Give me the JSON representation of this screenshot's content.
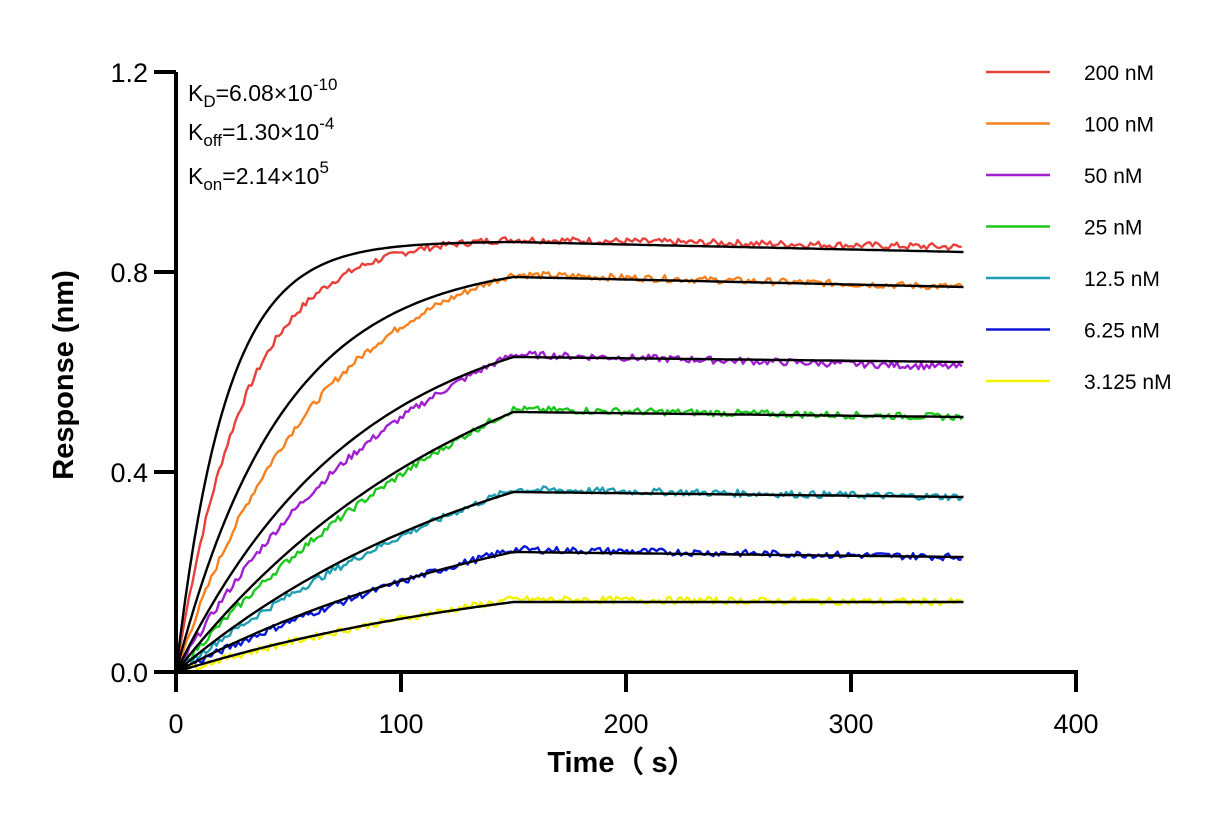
{
  "chart_data": {
    "type": "line",
    "title": "",
    "xlabel": "Time（ s）",
    "ylabel": "Response (nm)",
    "xlim": [
      0,
      400
    ],
    "ylim": [
      0,
      1.2
    ],
    "x_ticks": [
      "0",
      "100",
      "200",
      "300",
      "400"
    ],
    "y_ticks": [
      "0.0",
      "0.4",
      "0.8",
      "1.2"
    ],
    "grid": false,
    "legend_position": "top-right",
    "annotations": {
      "kd": {
        "base": "K",
        "sub": "D",
        "text": "=6.08×10",
        "sup": "-10"
      },
      "koff": {
        "base": "K",
        "sub": "off",
        "text": "=1.30×10",
        "sup": "-4"
      },
      "kon": {
        "base": "K",
        "sub": "on",
        "text": "=2.14×10",
        "sup": "5"
      }
    },
    "association_end": 150,
    "dissociation_end": 350,
    "series": [
      {
        "name": "200 nM",
        "color": "#e8413b",
        "plateau": 0.86,
        "fit_end": 0.84,
        "obs_end": 0.85
      },
      {
        "name": "100 nM",
        "color": "#f5821f",
        "plateau": 0.79,
        "fit_end": 0.77,
        "obs_end": 0.77
      },
      {
        "name": "50 nM",
        "color": "#a020d0",
        "plateau": 0.63,
        "fit_end": 0.62,
        "obs_end": 0.61
      },
      {
        "name": "25 nM",
        "color": "#1ec81e",
        "plateau": 0.52,
        "fit_end": 0.51,
        "obs_end": 0.51
      },
      {
        "name": "12.5 nM",
        "color": "#1e9fb4",
        "plateau": 0.36,
        "fit_end": 0.35,
        "obs_end": 0.35
      },
      {
        "name": "6.25 nM",
        "color": "#0a18d6",
        "plateau": 0.24,
        "fit_end": 0.23,
        "obs_end": 0.23
      },
      {
        "name": "3.125 nM",
        "color": "#f2f200",
        "plateau": 0.14,
        "fit_end": 0.14,
        "obs_end": 0.14
      }
    ],
    "fit_color": "#000000"
  }
}
